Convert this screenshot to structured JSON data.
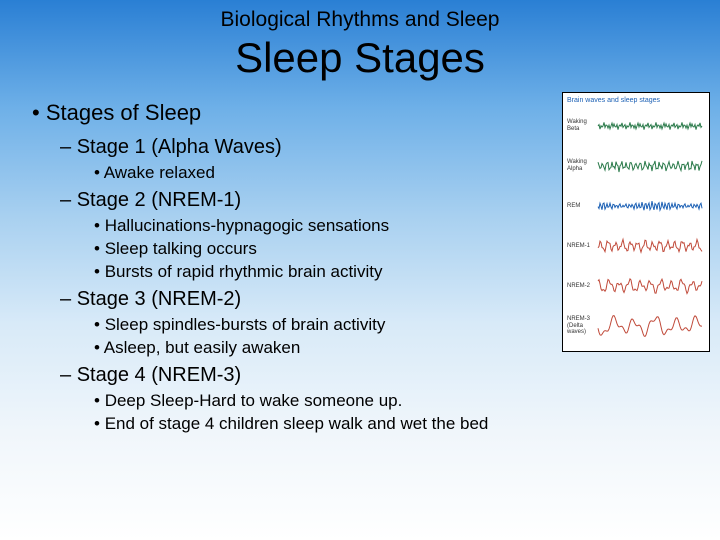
{
  "preheader": "Biological Rhythms and Sleep",
  "title": "Sleep Stages",
  "outline": {
    "h1": "Stages of Sleep",
    "s1": {
      "label": "Stage 1 (Alpha Waves)",
      "a": "Awake relaxed"
    },
    "s2": {
      "label": "Stage 2 (NREM-1)",
      "a": "Hallucinations-hypnagogic sensations",
      "b": "Sleep talking occurs",
      "c": "Bursts of rapid rhythmic brain activity"
    },
    "s3": {
      "label": "Stage 3 (NREM-2)",
      "a": "Sleep spindles-bursts of brain activity",
      "b": "Asleep, but easily awaken"
    },
    "s4": {
      "label": "Stage 4 (NREM-3)",
      "a": "Deep Sleep-Hard to wake someone up.",
      "b": "End of stage 4 children sleep walk and wet the bed"
    }
  },
  "figure": {
    "title": "Brain waves and sleep stages",
    "rows": [
      {
        "label": "Waking Beta",
        "color": "#2a7a4a",
        "amp": 4,
        "freq": 40,
        "phase": 0.0
      },
      {
        "label": "Waking Alpha",
        "color": "#2a7a4a",
        "amp": 6,
        "freq": 22,
        "phase": 0.3
      },
      {
        "label": "REM",
        "color": "#1a5fb4",
        "amp": 5,
        "freq": 32,
        "phase": 0.6
      },
      {
        "label": "NREM-1",
        "color": "#c04a3a",
        "amp": 7,
        "freq": 14,
        "phase": 0.9
      },
      {
        "label": "NREM-2",
        "color": "#c04a3a",
        "amp": 8,
        "freq": 10,
        "phase": 1.2
      },
      {
        "label": "NREM-3 (Delta waves)",
        "color": "#c04a3a",
        "amp": 12,
        "freq": 5,
        "phase": 1.5
      }
    ]
  },
  "colors": {
    "text": "#000000",
    "slide_bg_top": "#2a7fd4",
    "slide_bg_bottom": "#ffffff",
    "figure_bg": "#ffffff",
    "figure_border": "#000000"
  }
}
